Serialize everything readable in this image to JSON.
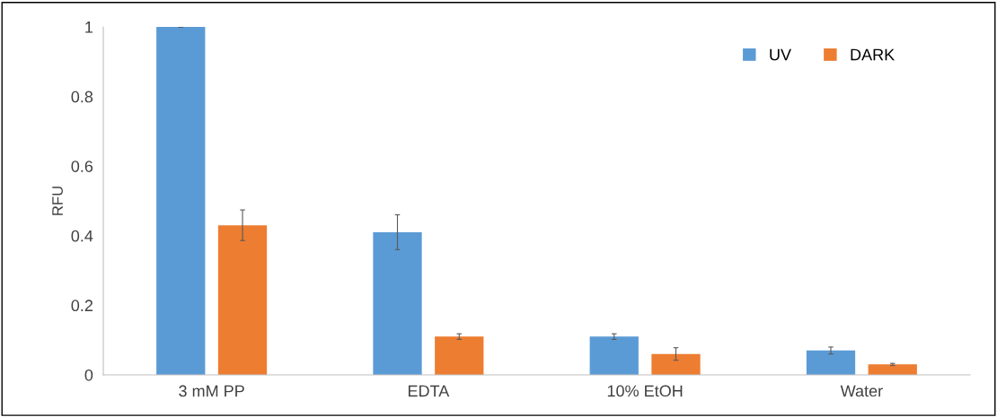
{
  "chart_data": {
    "type": "bar",
    "ylabel": "RFU",
    "categories": [
      "3 mM PP",
      "EDTA",
      "10% EtOH",
      "Water"
    ],
    "series": [
      {
        "name": "UV",
        "color": "#5b9bd5",
        "values": [
          1.0,
          0.41,
          0.11,
          0.07
        ],
        "errors": [
          0.001,
          0.05,
          0.008,
          0.01
        ]
      },
      {
        "name": "DARK",
        "color": "#ed7d31",
        "values": [
          0.43,
          0.11,
          0.06,
          0.03
        ],
        "errors": [
          0.044,
          0.008,
          0.018,
          0.003
        ]
      }
    ],
    "ylim": [
      0,
      1
    ],
    "yticks": [
      0,
      0.2,
      0.4,
      0.6,
      0.8,
      1
    ],
    "grid": false,
    "legend": "top right"
  }
}
